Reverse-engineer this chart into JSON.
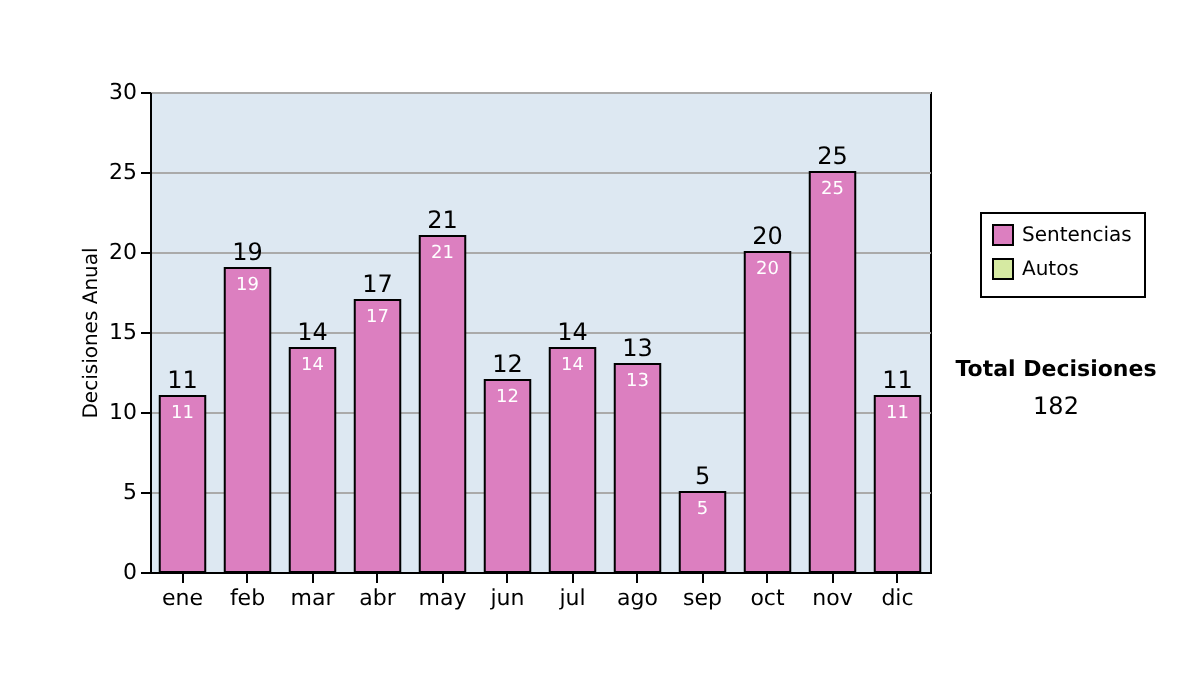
{
  "chart_data": {
    "type": "bar",
    "ylabel": "Decisiones Anual",
    "categories": [
      "ene",
      "feb",
      "mar",
      "abr",
      "may",
      "jun",
      "jul",
      "ago",
      "sep",
      "oct",
      "nov",
      "dic"
    ],
    "series": [
      {
        "name": "Sentencias",
        "color": "#dc7fc0",
        "values": [
          11,
          19,
          14,
          17,
          21,
          12,
          14,
          13,
          5,
          20,
          25,
          11
        ],
        "value_labels": [
          "11",
          "19",
          "14",
          "17",
          "21",
          "12",
          "14",
          "13",
          "5",
          "20",
          "25",
          "11"
        ]
      },
      {
        "name": "Autos",
        "color": "#d6eaa2",
        "values": [
          null,
          null,
          null,
          null,
          null,
          null,
          null,
          null,
          null,
          null,
          null,
          null
        ]
      }
    ],
    "stacked": true,
    "totals": [
      "11",
      "19",
      "14",
      "17",
      "21",
      "12",
      "14",
      "13",
      "5",
      "20",
      "25",
      "11"
    ],
    "ylim": [
      0,
      30
    ],
    "yticks": [
      0,
      5,
      10,
      15,
      20,
      25,
      30
    ],
    "grid": "y",
    "legend": "right",
    "annotations": [
      "Total Decisiones",
      "182"
    ]
  }
}
